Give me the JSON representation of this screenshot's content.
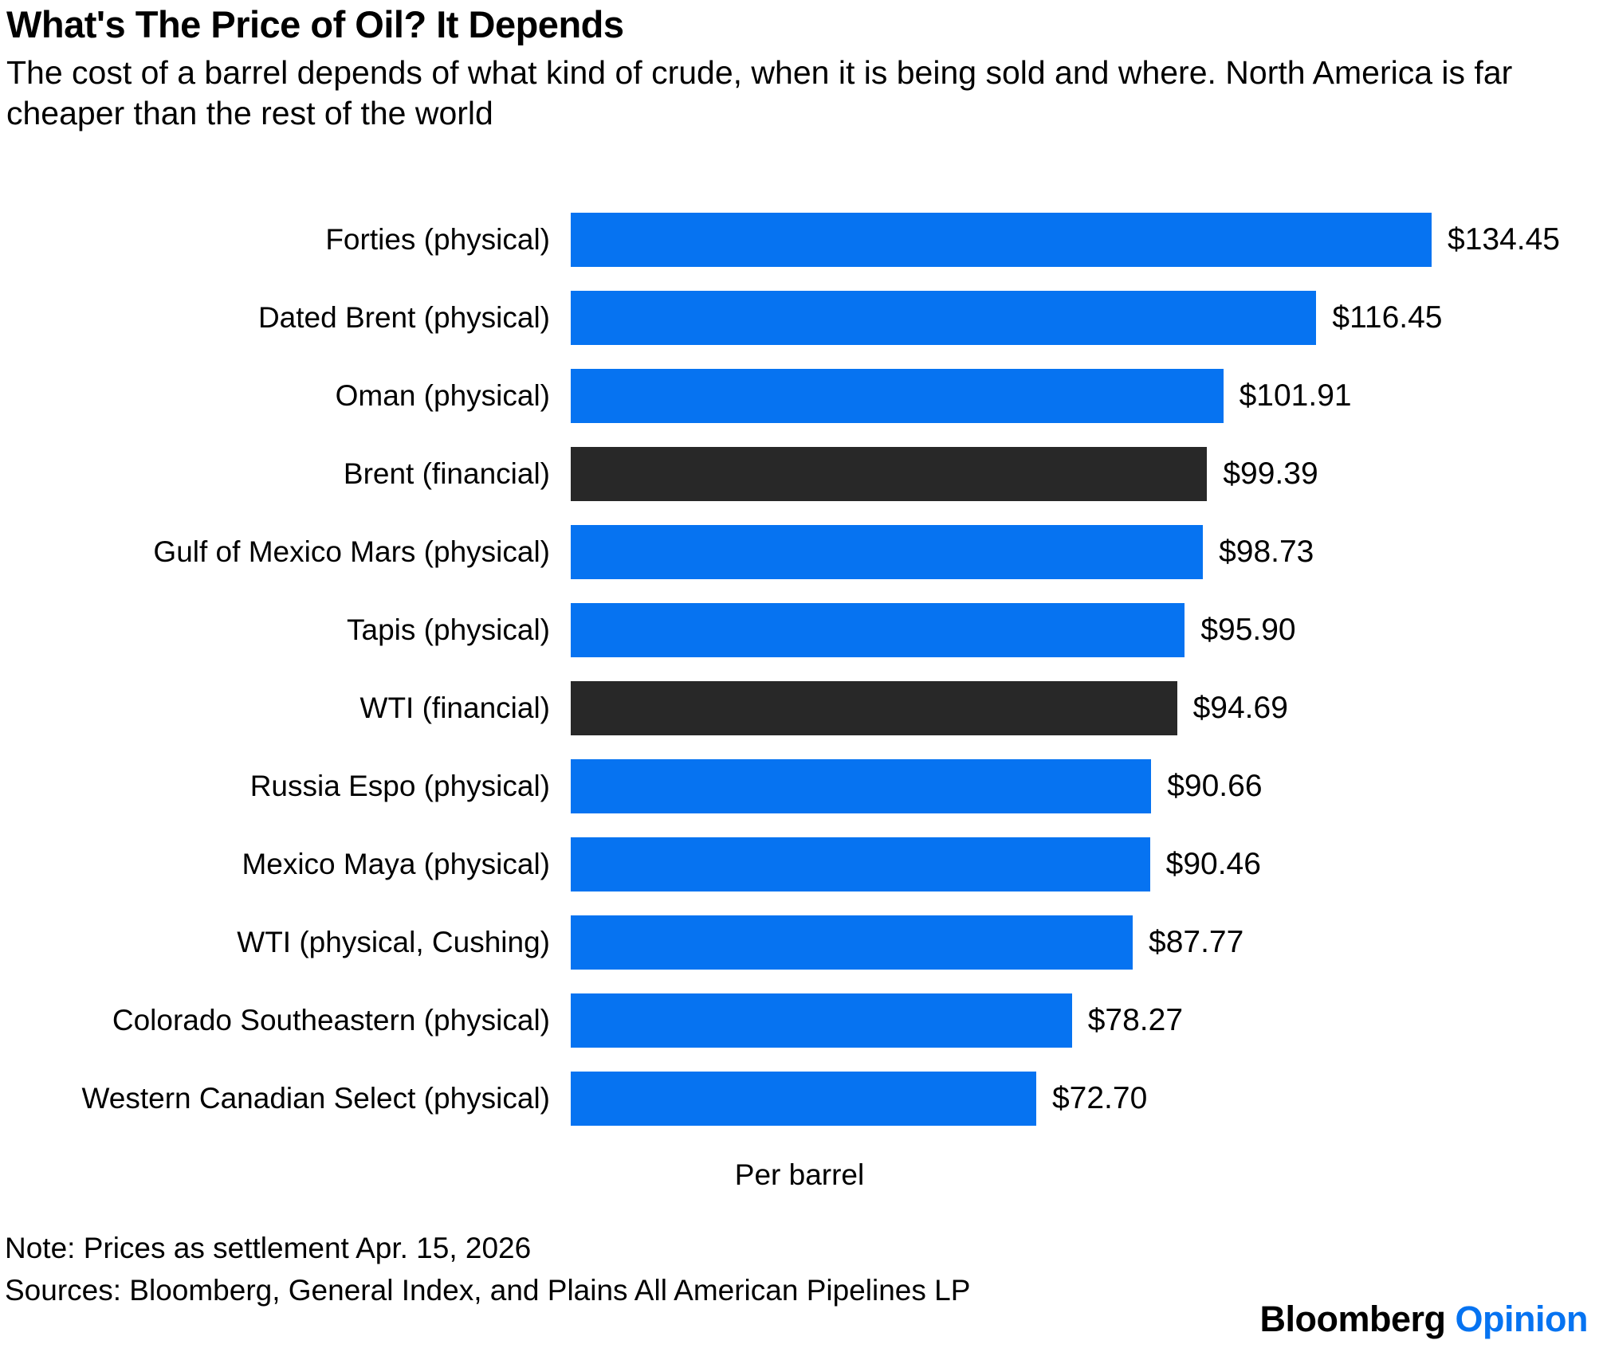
{
  "header": {
    "title": "What's The Price of Oil? It Depends",
    "subtitle": "The cost of a barrel depends of what kind of crude, when it is being sold and where. North America is far cheaper than the rest of the world"
  },
  "chart_data": {
    "type": "bar",
    "orientation": "horizontal",
    "title": "What's The Price of Oil? It Depends",
    "subtitle": "The cost of a barrel depends of what kind of crude, when it is being sold and where. North America is far cheaper than the rest of the world",
    "xlabel": "Per barrel",
    "ylabel": "",
    "xlim": [
      0,
      134.45
    ],
    "grid": false,
    "legend": false,
    "categories": [
      "Forties (physical)",
      "Dated Brent (physical)",
      "Oman (physical)",
      "Brent (financial)",
      "Gulf of Mexico Mars (physical)",
      "Tapis (physical)",
      "WTI (financial)",
      "Russia Espo (physical)",
      "Mexico Maya (physical)",
      "WTI (physical, Cushing)",
      "Colorado Southeastern (physical)",
      "Western Canadian Select (physical)"
    ],
    "values": [
      134.45,
      116.45,
      101.91,
      99.39,
      98.73,
      95.9,
      94.69,
      90.66,
      90.46,
      87.77,
      78.27,
      72.7
    ],
    "value_labels": [
      "$134.45",
      "$116.45",
      "$101.91",
      "$99.39",
      "$98.73",
      "$95.90",
      "$94.69",
      "$90.66",
      "$90.46",
      "$87.77",
      "$78.27",
      "$72.70"
    ],
    "bar_colors": [
      "#0673F1",
      "#0673F1",
      "#0673F1",
      "#282828",
      "#0673F1",
      "#0673F1",
      "#282828",
      "#0673F1",
      "#0673F1",
      "#0673F1",
      "#0673F1",
      "#0673F1"
    ],
    "colors": {
      "physical_blue": "#0673F1",
      "financial_dark": "#282828"
    }
  },
  "footer": {
    "note": "Note: Prices as settlement Apr. 15, 2026",
    "sources": "Sources: Bloomberg, General Index, and Plains All American Pipelines LP",
    "brand": {
      "bloomberg": "Bloomberg",
      "opinion": "Opinion",
      "opinion_color": "#0673F1"
    }
  }
}
